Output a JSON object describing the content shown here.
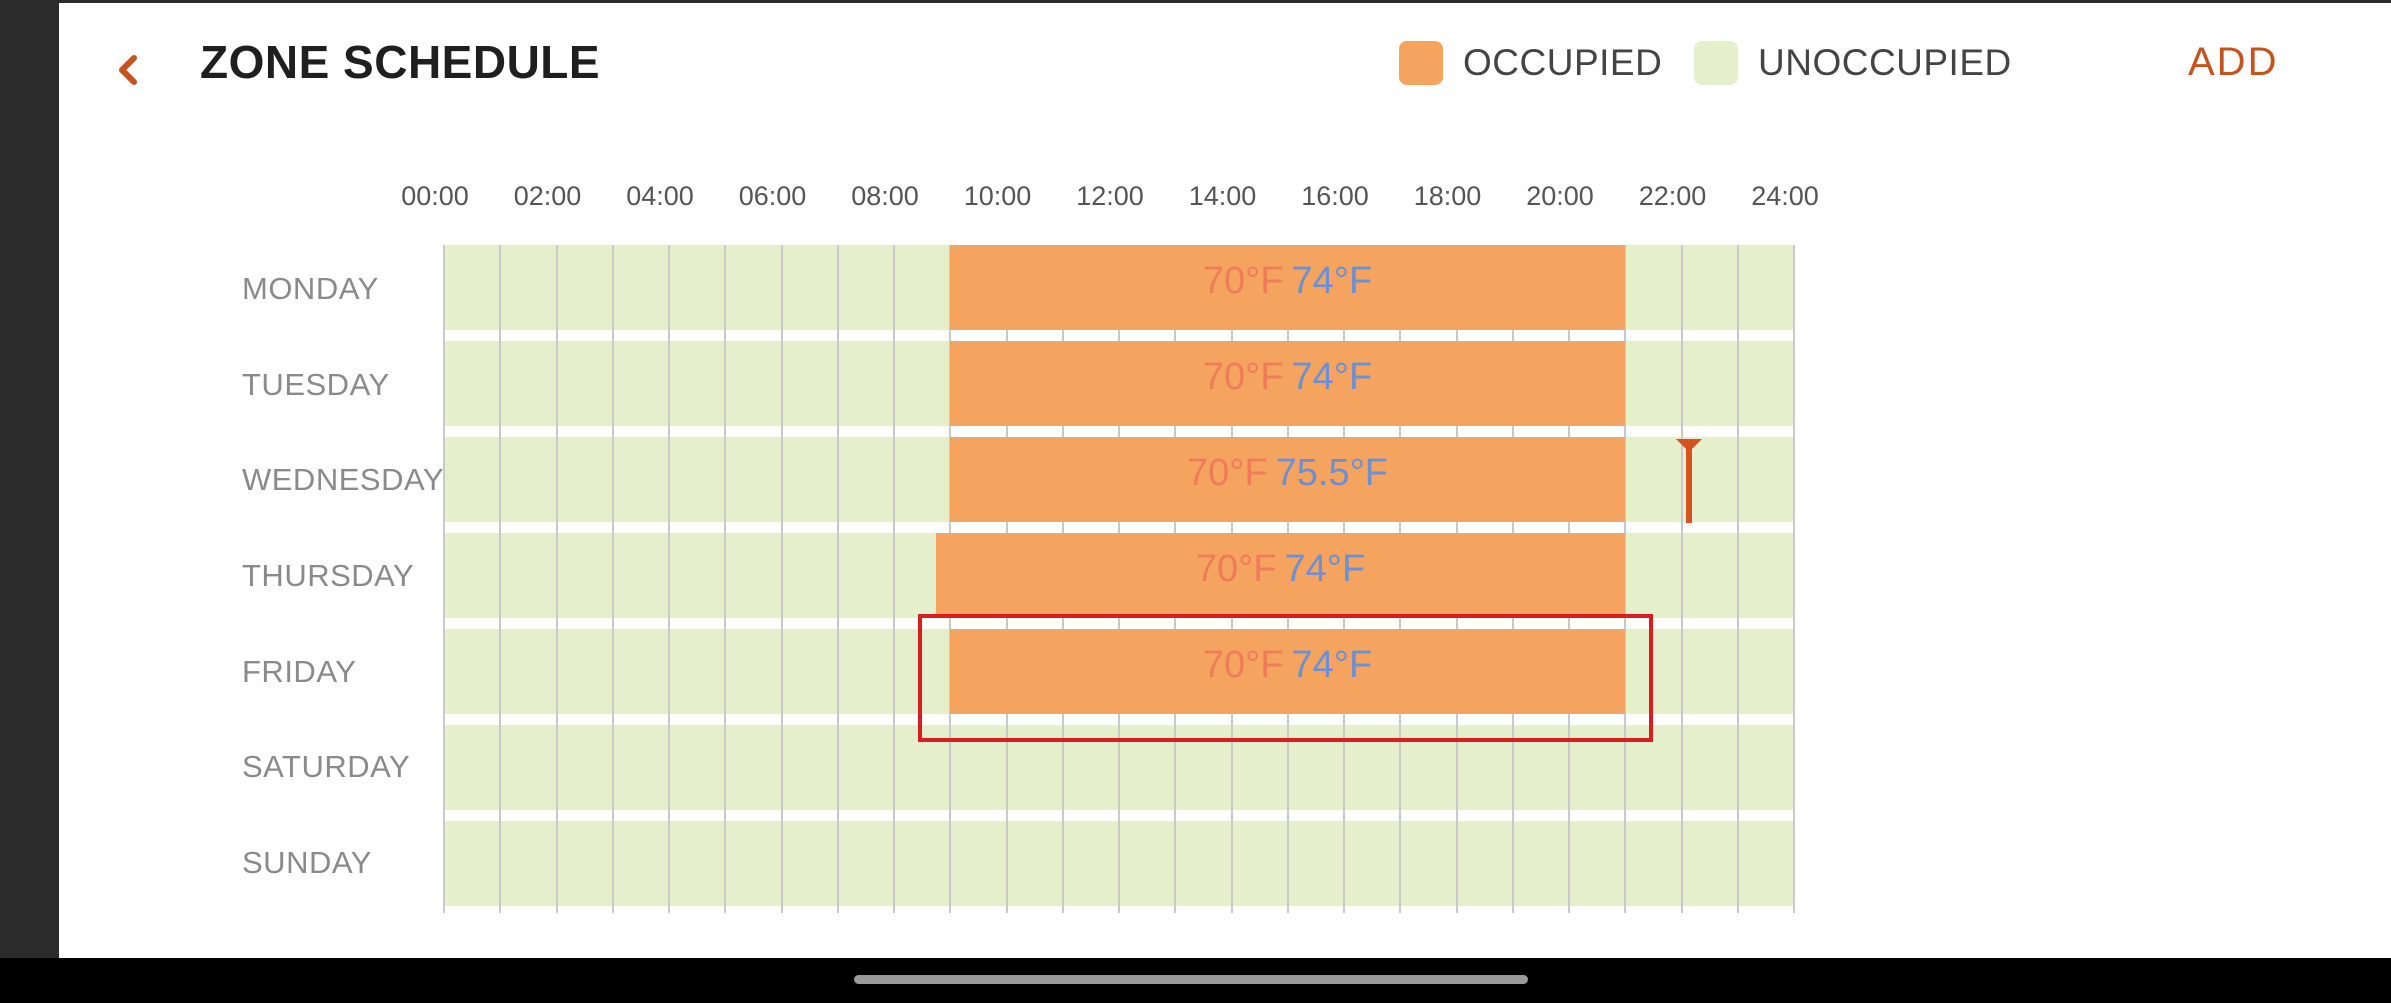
{
  "header": {
    "title": "ZONE SCHEDULE",
    "back_icon": "chevron-left-icon",
    "add_label": "ADD",
    "accent_color": "#c7521e"
  },
  "legend": {
    "occupied": {
      "label": "OCCUPIED",
      "color": "#f5a460"
    },
    "unoccupied": {
      "label": "UNOCCUPIED",
      "color": "#e6efcc"
    }
  },
  "time_axis": {
    "labels": [
      "00:00",
      "02:00",
      "04:00",
      "06:00",
      "08:00",
      "10:00",
      "12:00",
      "14:00",
      "16:00",
      "18:00",
      "20:00",
      "22:00",
      "24:00"
    ]
  },
  "schedule": {
    "days": [
      {
        "name": "MONDAY",
        "occupied": {
          "start": "09:00",
          "end": "21:00",
          "heat": "70°F",
          "cool": "74°F"
        }
      },
      {
        "name": "TUESDAY",
        "occupied": {
          "start": "09:00",
          "end": "21:00",
          "heat": "70°F",
          "cool": "74°F"
        }
      },
      {
        "name": "WEDNESDAY",
        "occupied": {
          "start": "09:00",
          "end": "21:00",
          "heat": "70°F",
          "cool": "75.5°F"
        }
      },
      {
        "name": "THURSDAY",
        "occupied": {
          "start": "08:45",
          "end": "21:00",
          "heat": "70°F",
          "cool": "74°F"
        }
      },
      {
        "name": "FRIDAY",
        "selected": true,
        "occupied": {
          "start": "09:00",
          "end": "21:00",
          "heat": "70°F",
          "cool": "74°F"
        }
      },
      {
        "name": "SATURDAY",
        "occupied": null
      },
      {
        "name": "SUNDAY",
        "occupied": null
      }
    ],
    "current_time": {
      "day": "WEDNESDAY",
      "time": "22:15"
    },
    "heat_color": "#ef7b5b",
    "cool_color": "#6e8fd0"
  }
}
